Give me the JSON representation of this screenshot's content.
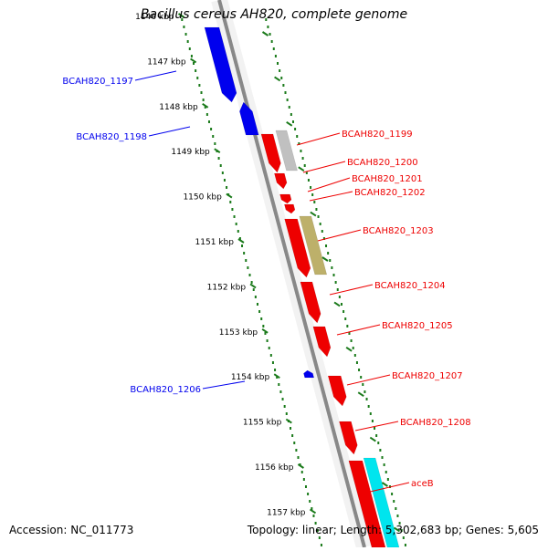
{
  "title": "Bacillus cereus AH820, complete genome",
  "accession": "Accession: NC_011773",
  "summary": "Topology: linear; Length: 5,302,683 bp; Genes: 5,605",
  "colors": {
    "forward_gene": "#0000ee",
    "reverse_gene": "#ee0000",
    "grey_feature": "#c0c0c0",
    "olive_feature": "#bdb06a",
    "cyan_feature": "#00e5ee",
    "tick": "#1a7a1a",
    "backbone": "#888888"
  },
  "ruler": [
    "1146 kbp",
    "1147 kbp",
    "1148 kbp",
    "1149 kbp",
    "1150 kbp",
    "1151 kbp",
    "1152 kbp",
    "1153 kbp",
    "1154 kbp",
    "1155 kbp",
    "1156 kbp",
    "1157 kbp"
  ],
  "left_labels": [
    "BCAH820_1197",
    "BCAH820_1198",
    "BCAH820_1206"
  ],
  "right_labels": [
    "BCAH820_1199",
    "BCAH820_1200",
    "BCAH820_1201",
    "BCAH820_1202",
    "BCAH820_1203",
    "BCAH820_1204",
    "BCAH820_1205",
    "BCAH820_1207",
    "BCAH820_1208",
    "aceB"
  ]
}
